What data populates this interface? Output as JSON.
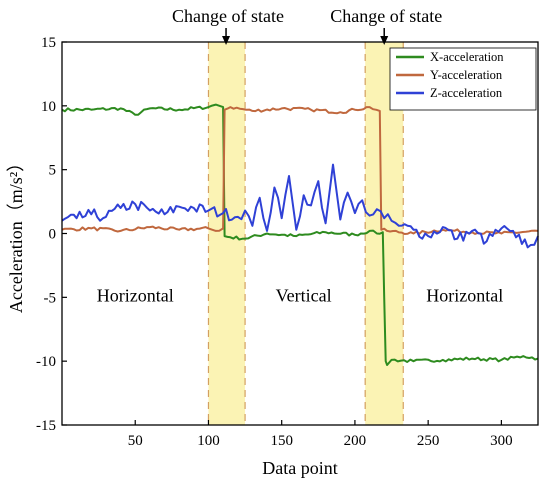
{
  "chart_data": {
    "type": "line",
    "title": "",
    "xlabel": "Data point",
    "ylabel": "Acceleration（m/s²）",
    "xlim": [
      0,
      325
    ],
    "ylim": [
      -15,
      15
    ],
    "xticks": [
      50,
      100,
      150,
      200,
      250,
      300
    ],
    "yticks": [
      15,
      10,
      5,
      0,
      -5,
      -10,
      -15
    ],
    "grid": false,
    "legend_position": "top-right",
    "series": [
      {
        "name": "X-acceleration",
        "color": "#2e8b1f",
        "x": [
          0,
          20,
          40,
          50,
          60,
          80,
          100,
          105,
          110,
          111,
          115,
          125,
          140,
          160,
          180,
          200,
          210,
          215,
          219,
          220,
          221,
          222,
          225,
          240,
          260,
          280,
          300,
          315,
          325
        ],
        "y": [
          9.7,
          9.7,
          9.8,
          9.3,
          9.8,
          9.7,
          9.9,
          10.1,
          9.9,
          -0.2,
          -0.3,
          -0.4,
          0.0,
          -0.2,
          0.1,
          -0.1,
          0.2,
          0.0,
          0.1,
          -5.0,
          -10.0,
          -10.3,
          -9.9,
          -10.0,
          -9.9,
          -9.8,
          -9.9,
          -9.6,
          -9.8
        ]
      },
      {
        "name": "Y-acceleration",
        "color": "#c0683e",
        "x": [
          0,
          20,
          40,
          60,
          80,
          100,
          105,
          110,
          111,
          115,
          130,
          150,
          170,
          190,
          200,
          210,
          217,
          218,
          222,
          240,
          260,
          280,
          300,
          325
        ],
        "y": [
          0.3,
          0.4,
          0.2,
          0.5,
          0.3,
          0.4,
          0.2,
          0.4,
          9.7,
          9.9,
          9.6,
          9.8,
          9.7,
          9.5,
          9.7,
          9.9,
          9.6,
          0.3,
          0.2,
          0.0,
          0.3,
          0.1,
          0.0,
          0.2
        ]
      },
      {
        "name": "Z-acceleration",
        "color": "#2f41d6",
        "x": [
          0,
          10,
          20,
          30,
          40,
          50,
          60,
          70,
          80,
          90,
          100,
          110,
          120,
          125,
          130,
          135,
          140,
          145,
          150,
          155,
          160,
          165,
          170,
          175,
          180,
          185,
          190,
          195,
          200,
          205,
          210,
          215,
          220,
          225,
          230,
          240,
          250,
          260,
          270,
          280,
          290,
          300,
          310,
          320,
          325
        ],
        "y": [
          1.0,
          1.2,
          1.5,
          1.3,
          2.0,
          2.3,
          1.8,
          1.5,
          2.1,
          2.0,
          1.8,
          1.6,
          1.3,
          1.8,
          0.6,
          2.8,
          0.2,
          3.6,
          1.2,
          4.5,
          0.3,
          3.0,
          2.2,
          4.1,
          0.8,
          5.4,
          1.1,
          3.2,
          1.6,
          2.6,
          1.4,
          1.9,
          1.2,
          1.0,
          0.6,
          0.3,
          -0.2,
          0.5,
          -0.4,
          0.2,
          -0.6,
          0.4,
          -0.3,
          -0.9,
          -0.2
        ]
      }
    ],
    "annotations": [
      {
        "text": "Change of state",
        "x": 112,
        "y": 15,
        "arrow": true
      },
      {
        "text": "Change of state",
        "x": 220,
        "y": 15,
        "arrow": true
      },
      {
        "text": "Horizontal",
        "x": 50,
        "y": -5
      },
      {
        "text": "Vertical",
        "x": 165,
        "y": -5
      },
      {
        "text": "Horizontal",
        "x": 275,
        "y": -5
      }
    ],
    "highlight_bands": [
      {
        "x_start": 100,
        "x_end": 125,
        "color": "#fbf3b4"
      },
      {
        "x_start": 207,
        "x_end": 233,
        "color": "#fbf3b4"
      }
    ]
  }
}
